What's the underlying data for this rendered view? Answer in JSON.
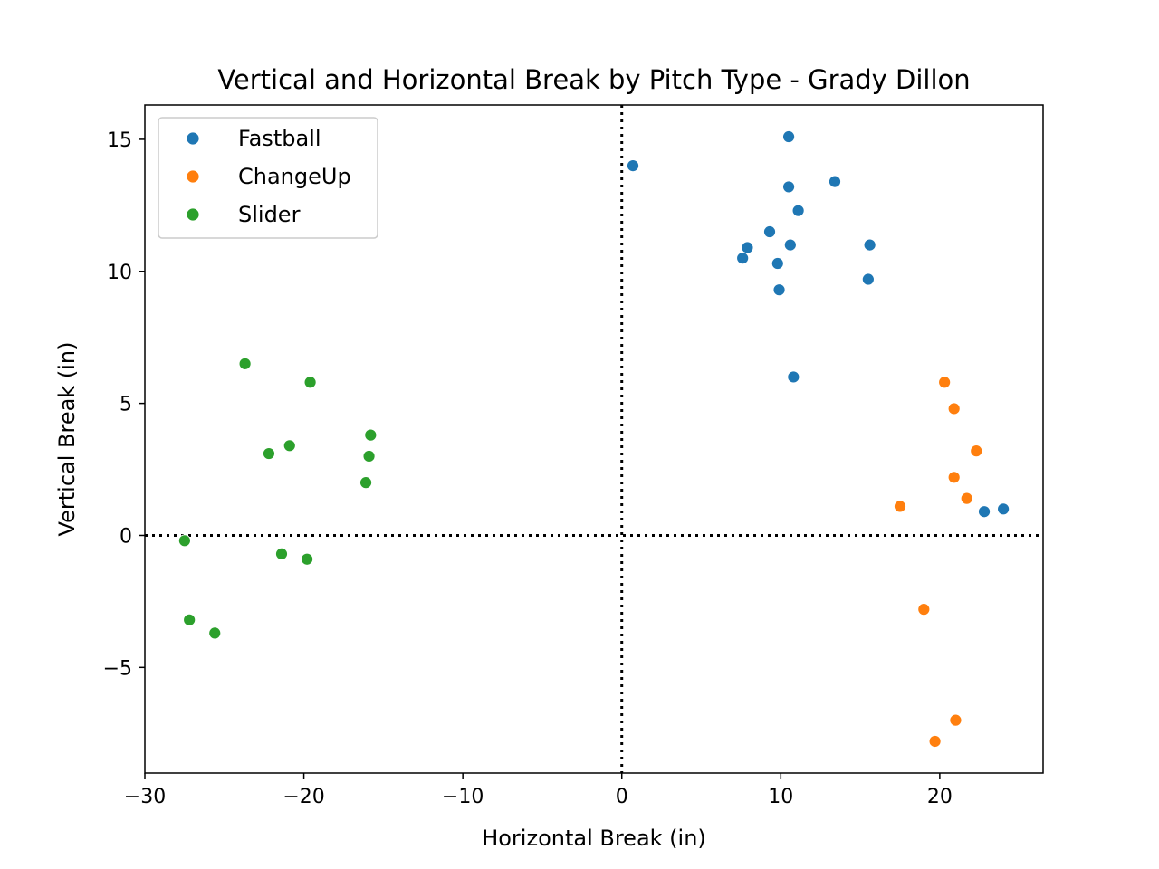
{
  "chart_data": {
    "type": "scatter",
    "title": "Vertical and Horizontal Break by Pitch Type - Grady Dillon",
    "xlabel": "Horizontal Break (in)",
    "ylabel": "Vertical Break (in)",
    "xlim": [
      -30,
      26.5
    ],
    "ylim": [
      -9,
      16.3
    ],
    "xticks": [
      -30,
      -20,
      -10,
      0,
      10,
      20
    ],
    "xtick_labels": [
      "−30",
      "−20",
      "−10",
      "0",
      "10",
      "20"
    ],
    "yticks": [
      -5,
      0,
      5,
      10,
      15
    ],
    "ytick_labels": [
      "−5",
      "0",
      "5",
      "10",
      "15"
    ],
    "reference_lines": [
      {
        "orientation": "vertical",
        "value": 0,
        "style": "dotted",
        "color": "#000000"
      },
      {
        "orientation": "horizontal",
        "value": 0,
        "style": "dotted",
        "color": "#000000"
      }
    ],
    "grid": false,
    "legend_position": "upper-left",
    "series": [
      {
        "name": "Fastball",
        "color": "#1f77b4",
        "points": [
          [
            0.7,
            14.0
          ],
          [
            10.5,
            15.1
          ],
          [
            10.5,
            13.2
          ],
          [
            13.4,
            13.4
          ],
          [
            11.1,
            12.3
          ],
          [
            9.3,
            11.5
          ],
          [
            7.9,
            10.9
          ],
          [
            10.6,
            11.0
          ],
          [
            15.6,
            11.0
          ],
          [
            7.6,
            10.5
          ],
          [
            9.8,
            10.3
          ],
          [
            15.5,
            9.7
          ],
          [
            9.9,
            9.3
          ],
          [
            10.8,
            6.0
          ],
          [
            22.8,
            0.9
          ],
          [
            24.0,
            1.0
          ]
        ]
      },
      {
        "name": "ChangeUp",
        "color": "#ff7f0e",
        "points": [
          [
            20.3,
            5.8
          ],
          [
            20.9,
            4.8
          ],
          [
            22.3,
            3.2
          ],
          [
            20.9,
            2.2
          ],
          [
            21.7,
            1.4
          ],
          [
            17.5,
            1.1
          ],
          [
            19.0,
            -2.8
          ],
          [
            21.0,
            -7.0
          ],
          [
            19.7,
            -7.8
          ]
        ]
      },
      {
        "name": "Slider",
        "color": "#2ca02c",
        "points": [
          [
            -23.7,
            6.5
          ],
          [
            -19.6,
            5.8
          ],
          [
            -15.8,
            3.8
          ],
          [
            -20.9,
            3.4
          ],
          [
            -22.2,
            3.1
          ],
          [
            -15.9,
            3.0
          ],
          [
            -16.1,
            2.0
          ],
          [
            -27.5,
            -0.2
          ],
          [
            -21.4,
            -0.7
          ],
          [
            -19.8,
            -0.9
          ],
          [
            -27.2,
            -3.2
          ],
          [
            -25.6,
            -3.7
          ]
        ]
      }
    ]
  }
}
